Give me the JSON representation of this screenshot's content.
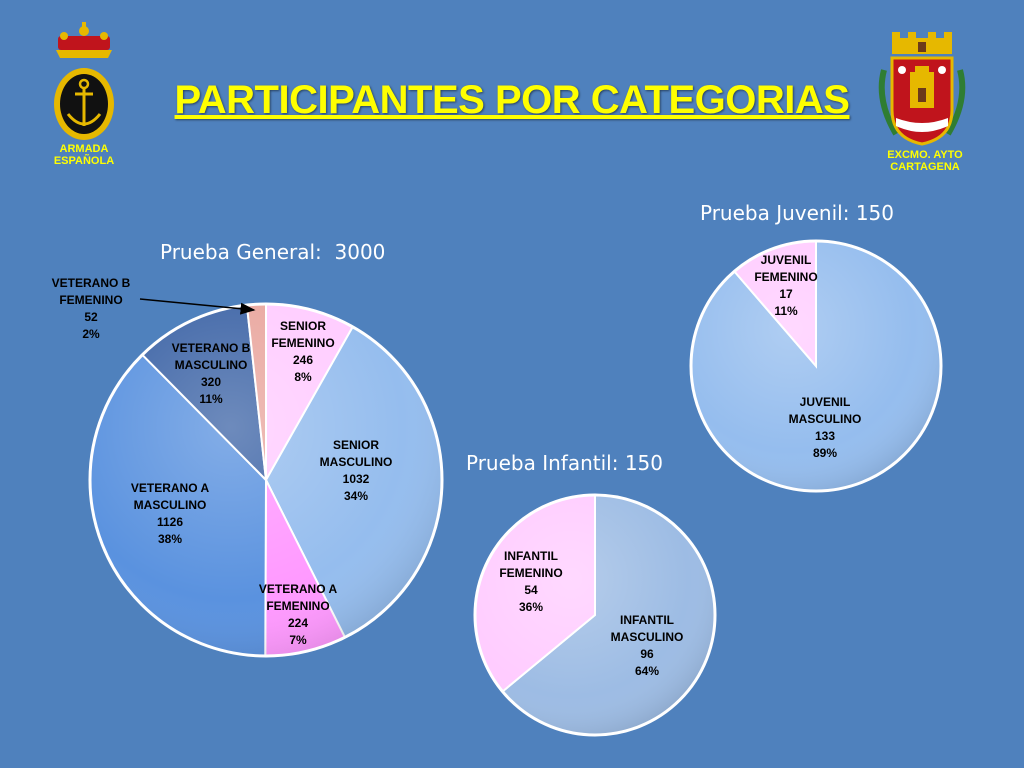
{
  "title": "PARTICIPANTES POR CATEGORIAS",
  "logos": {
    "left_caption": "ARMADA\nESPAÑOLA",
    "right_caption": "EXCMO. AYTO\nCARTAGENA"
  },
  "colors": {
    "background": "#4f81bd",
    "title": "#ffff00"
  },
  "chart_data": [
    {
      "type": "pie",
      "title": "Prueba General:  3000",
      "slices": [
        {
          "label": [
            "SENIOR",
            "FEMENINO",
            "246",
            "8%"
          ],
          "value": 246,
          "percent": 8,
          "color": "#ffccff"
        },
        {
          "label": [
            "SENIOR",
            "MASCULINO",
            "1032",
            "34%"
          ],
          "value": 1032,
          "percent": 34,
          "color": "#95bdee"
        },
        {
          "label": [
            "VETERANO A",
            "FEMENINO",
            "224",
            "7%"
          ],
          "value": 224,
          "percent": 7,
          "color": "#ff99ff"
        },
        {
          "label": [
            "VETERANO A",
            "MASCULINO",
            "1126",
            "38%"
          ],
          "value": 1126,
          "percent": 38,
          "color": "#5a92df"
        },
        {
          "label": [
            "VETERANO B",
            "MASCULINO",
            "320",
            "11%"
          ],
          "value": 320,
          "percent": 11,
          "color": "#3d64a6"
        },
        {
          "label": [
            "VETERANO B",
            "FEMENINO",
            "52",
            "2%"
          ],
          "value": 52,
          "percent": 2,
          "color": "#e9a69e"
        }
      ]
    },
    {
      "type": "pie",
      "title": "Prueba Juvenil: 150",
      "slices": [
        {
          "label": [
            "JUVENIL",
            "MASCULINO",
            "133",
            "89%"
          ],
          "value": 133,
          "percent": 89,
          "color": "#95bdee"
        },
        {
          "label": [
            "JUVENIL",
            "FEMENINO",
            "17",
            "11%"
          ],
          "value": 17,
          "percent": 11,
          "color": "#ffccff"
        }
      ]
    },
    {
      "type": "pie",
      "title": "Prueba Infantil: 150",
      "slices": [
        {
          "label": [
            "INFANTIL",
            "MASCULINO",
            "96",
            "64%"
          ],
          "value": 96,
          "percent": 64,
          "color": "#9dbce4"
        },
        {
          "label": [
            "INFANTIL",
            "FEMENINO",
            "54",
            "36%"
          ],
          "value": 54,
          "percent": 36,
          "color": "#ffccff"
        }
      ]
    }
  ]
}
